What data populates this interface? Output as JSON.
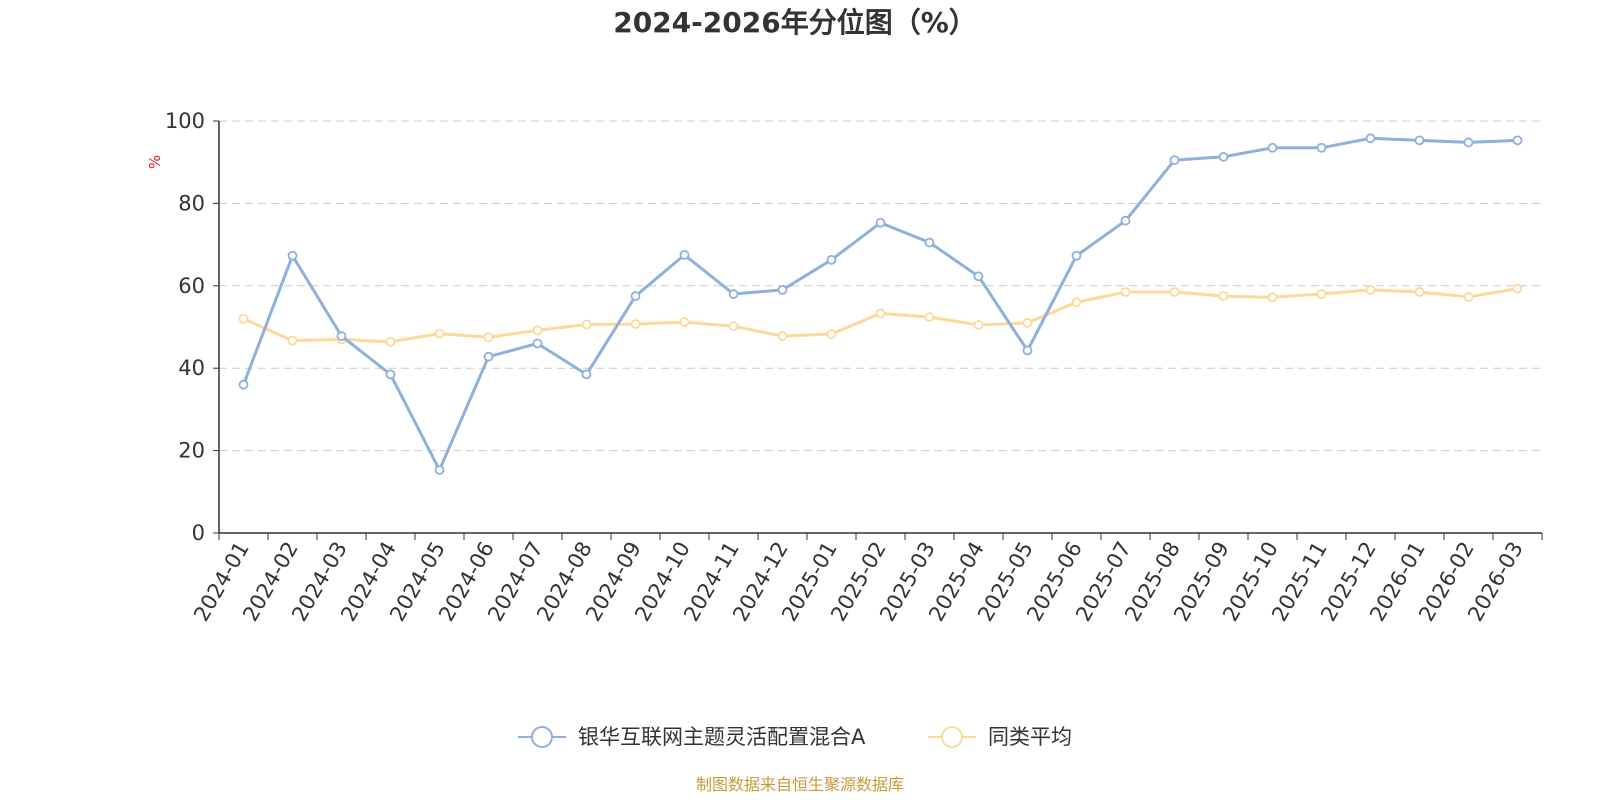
{
  "chart_data": {
    "type": "line",
    "title": "2024-2026年分位图（%）",
    "ylabel": "%",
    "xlabel": "",
    "ylim": [
      0,
      100
    ],
    "yticks": [
      0,
      20,
      40,
      60,
      80,
      100
    ],
    "grid": true,
    "legend_position": "bottom",
    "categories": [
      "2024-01",
      "2024-02",
      "2024-03",
      "2024-04",
      "2024-05",
      "2024-06",
      "2024-07",
      "2024-08",
      "2024-09",
      "2024-10",
      "2024-11",
      "2024-12",
      "2025-01",
      "2025-02",
      "2025-03",
      "2025-04",
      "2025-05",
      "2025-06",
      "2025-07",
      "2025-08",
      "2025-09",
      "2025-10",
      "2025-11",
      "2025-12",
      "2026-01",
      "2026-02",
      "2026-03"
    ],
    "series": [
      {
        "name": "银华互联网主题灵活配置混合A",
        "color": "#8eb0dc",
        "values": [
          36,
          67.3,
          47.8,
          38.5,
          15.3,
          42.8,
          46,
          38.5,
          57.5,
          67.5,
          58,
          59,
          66.3,
          75.3,
          70.5,
          62.3,
          44.3,
          67.3,
          75.8,
          90.5,
          91.3,
          93.5,
          93.5,
          95.8,
          95.3,
          94.8,
          95.3
        ]
      },
      {
        "name": "同类平均",
        "color": "#fcd99a",
        "values": [
          52,
          46.7,
          47,
          46.4,
          48.4,
          47.5,
          49.2,
          50.6,
          50.7,
          51.2,
          50.2,
          47.8,
          48.3,
          53.3,
          52.4,
          50.5,
          51,
          56,
          58.5,
          58.5,
          57.5,
          57.2,
          58,
          59,
          58.5,
          57.3,
          59.3
        ]
      }
    ]
  },
  "source_note": "制图数据来自恒生聚源数据库",
  "colors": {
    "axis": "#333333",
    "grid": "#cccccc",
    "ylabel": "#e02020",
    "source": "#c89a3c"
  }
}
